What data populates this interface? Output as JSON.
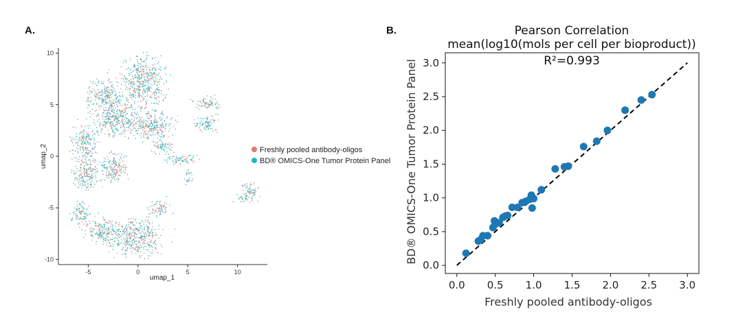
{
  "panel_a_label": "A.",
  "panel_b_label": "B.",
  "chart_data": [
    {
      "type": "scatter",
      "title": "",
      "xlabel": "umap_1",
      "ylabel": "umap_2",
      "xlim": [
        -8,
        13
      ],
      "ylim": [
        -10.5,
        10.5
      ],
      "x_ticks": [
        -5,
        0,
        5,
        10
      ],
      "x_tick_labels": [
        "-5",
        "0",
        "5",
        "10"
      ],
      "y_ticks": [
        10,
        5,
        0,
        -5,
        -10
      ],
      "y_tick_labels": [
        "10",
        "5",
        "0",
        "-5",
        "-10"
      ],
      "legend_position": "right",
      "series": [
        {
          "name": "Freshly pooled antibody-oligos",
          "color": "#e8766d"
        },
        {
          "name": "BD® OMICS-One Tumor Protein Panel",
          "color": "#1fb8be"
        }
      ],
      "clusters": [
        {
          "cx": 0.5,
          "cy": 7.2,
          "rx": 2.2,
          "ry": 2.4
        },
        {
          "cx": -3.2,
          "cy": 5.8,
          "rx": 1.8,
          "ry": 1.6
        },
        {
          "cx": -2.0,
          "cy": 3.5,
          "rx": 2.5,
          "ry": 1.5
        },
        {
          "cx": 1.5,
          "cy": 3.0,
          "rx": 2.0,
          "ry": 1.4
        },
        {
          "cx": -5.5,
          "cy": 1.5,
          "rx": 1.2,
          "ry": 1.6
        },
        {
          "cx": -5.3,
          "cy": -1.5,
          "rx": 1.3,
          "ry": 1.7
        },
        {
          "cx": -2.5,
          "cy": -1.0,
          "rx": 1.3,
          "ry": 1.5
        },
        {
          "cx": -0.3,
          "cy": -7.8,
          "rx": 2.6,
          "ry": 1.8
        },
        {
          "cx": -3.5,
          "cy": -7.2,
          "rx": 1.5,
          "ry": 1.3
        },
        {
          "cx": -5.8,
          "cy": -5.5,
          "rx": 0.9,
          "ry": 1.2
        },
        {
          "cx": 2.0,
          "cy": -5.0,
          "rx": 1.0,
          "ry": 0.8
        },
        {
          "cx": 6.8,
          "cy": 3.2,
          "rx": 1.1,
          "ry": 0.9
        },
        {
          "cx": 7.0,
          "cy": 5.2,
          "rx": 1.4,
          "ry": 0.6
        },
        {
          "cx": 4.2,
          "cy": -0.2,
          "rx": 1.6,
          "ry": 0.5
        },
        {
          "cx": 5.0,
          "cy": -2.0,
          "rx": 0.4,
          "ry": 0.7
        },
        {
          "cx": 11.3,
          "cy": -3.3,
          "rx": 0.8,
          "ry": 1.1
        },
        {
          "cx": 10.3,
          "cy": -4.0,
          "rx": 0.6,
          "ry": 0.3
        },
        {
          "cx": 2.5,
          "cy": 1.0,
          "rx": 1.0,
          "ry": 0.7
        }
      ]
    },
    {
      "type": "scatter",
      "title": "Pearson Correlation",
      "subtitle": "mean(log10(mols per cell per bioproduct))",
      "xlabel": "Freshly pooled antibody-oligos",
      "ylabel": "BD® OMICS-One Tumor Protein Panel",
      "annotation": "R²=0.993",
      "xlim": [
        -0.15,
        3.15
      ],
      "ylim": [
        -0.12,
        3.15
      ],
      "x_ticks": [
        0.0,
        0.5,
        1.0,
        1.5,
        2.0,
        2.5,
        3.0
      ],
      "x_tick_labels": [
        "0.0",
        "0.5",
        "1.0",
        "1.5",
        "2.0",
        "2.5",
        "3.0"
      ],
      "y_ticks": [
        0.0,
        0.5,
        1.0,
        1.5,
        2.0,
        2.5,
        3.0
      ],
      "y_tick_labels": [
        "0.0",
        "0.5",
        "1.0",
        "1.5",
        "2.0",
        "2.5",
        "3.0"
      ],
      "point_color": "#1f77b4",
      "line_color": "#000000",
      "reference_line": {
        "x": [
          0,
          3
        ],
        "y": [
          0,
          3
        ]
      },
      "x": [
        0.12,
        0.28,
        0.31,
        0.34,
        0.4,
        0.47,
        0.49,
        0.5,
        0.55,
        0.6,
        0.63,
        0.66,
        0.72,
        0.79,
        0.85,
        0.9,
        0.95,
        0.98,
        0.97,
        1.0,
        1.1,
        1.28,
        1.4,
        1.45,
        1.65,
        1.82,
        1.96,
        2.19,
        2.4,
        2.54
      ],
      "y": [
        0.18,
        0.36,
        0.38,
        0.44,
        0.44,
        0.56,
        0.66,
        0.61,
        0.63,
        0.71,
        0.73,
        0.74,
        0.86,
        0.86,
        0.93,
        0.95,
        0.98,
        0.85,
        1.04,
        0.99,
        1.12,
        1.43,
        1.46,
        1.47,
        1.76,
        1.84,
        2.0,
        2.3,
        2.45,
        2.53
      ]
    }
  ]
}
